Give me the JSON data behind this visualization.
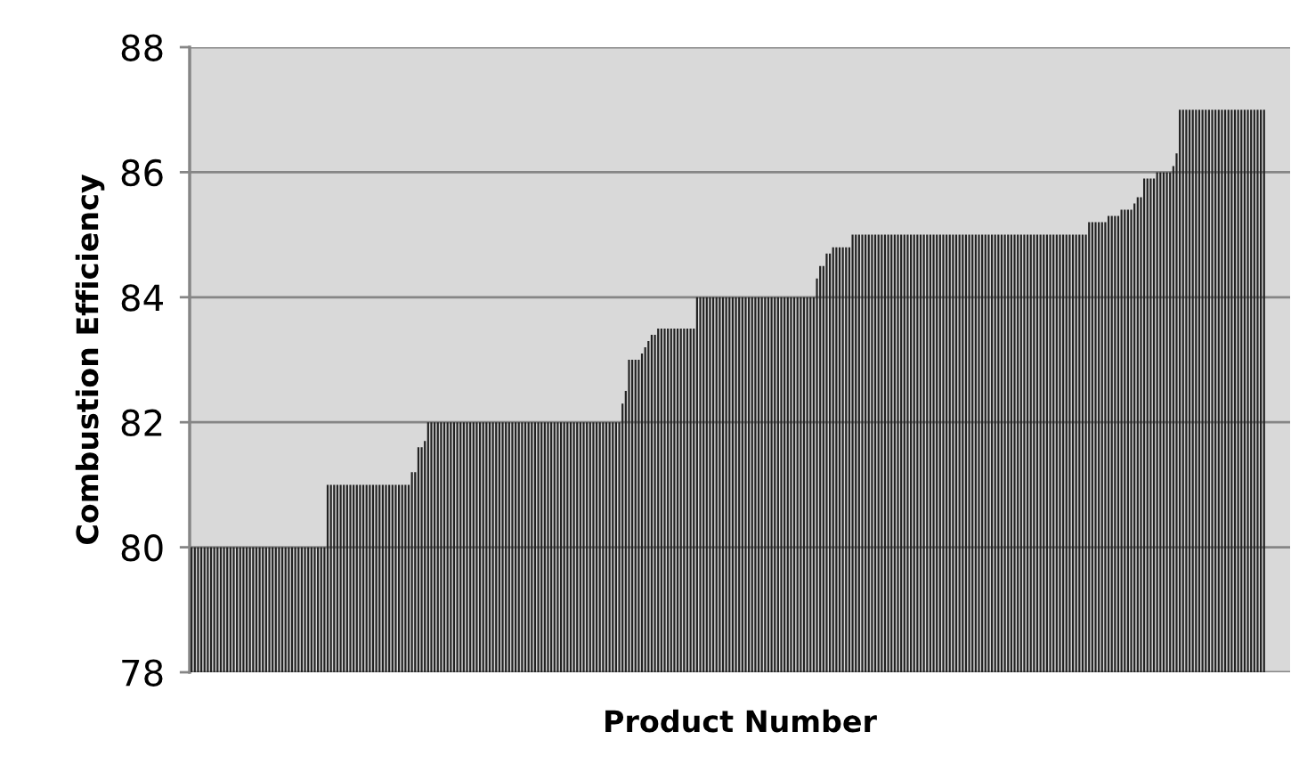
{
  "chart_data": {
    "type": "bar",
    "xlabel": "Product Number",
    "ylabel": "Combustion Efficiency",
    "categories": [
      null,
      null,
      null,
      null,
      null,
      null,
      null,
      null,
      null,
      null,
      null,
      null,
      null,
      null,
      null,
      null,
      null,
      null,
      null,
      null,
      null,
      null,
      null,
      null,
      null,
      null,
      null,
      null,
      null,
      null,
      null,
      null,
      null,
      null,
      null,
      null,
      null,
      null,
      null,
      null,
      null,
      null,
      null,
      null,
      null,
      null,
      null,
      null,
      null,
      null,
      null,
      null,
      null,
      null,
      null,
      null,
      null,
      null,
      null,
      null,
      null,
      null,
      null,
      null,
      null,
      null,
      null,
      null,
      null,
      null,
      null,
      null,
      null,
      null,
      null,
      null,
      null,
      null,
      null,
      null,
      null,
      null,
      null,
      null,
      null,
      null,
      null,
      null,
      null,
      null,
      null,
      null,
      null,
      null,
      null,
      null,
      null,
      null,
      null,
      null,
      null,
      null,
      null,
      null,
      null,
      null,
      null,
      null,
      null,
      null,
      null,
      null,
      null,
      null,
      null,
      null,
      null,
      null,
      null,
      null,
      null,
      null,
      null,
      null,
      null,
      null,
      null,
      null,
      null,
      null,
      null,
      null,
      null,
      null,
      null,
      null,
      null,
      null,
      null,
      null,
      null,
      null,
      null,
      null,
      null,
      null,
      null,
      null,
      null,
      null,
      null,
      null,
      null,
      null,
      null,
      null,
      null,
      null,
      null,
      null,
      null,
      null,
      null,
      null,
      null,
      null,
      null,
      null,
      null,
      null,
      null,
      null,
      null,
      null,
      null,
      null,
      null,
      null,
      null,
      null,
      null,
      null,
      null,
      null,
      null,
      null,
      null,
      null,
      null,
      null,
      null,
      null,
      null,
      null,
      null,
      null,
      null,
      null,
      null,
      null,
      null,
      null,
      null,
      null,
      null,
      null,
      null,
      null,
      null,
      null,
      null,
      null,
      null,
      null,
      null,
      null,
      null,
      null,
      null,
      null,
      null,
      null,
      null,
      null,
      null,
      null,
      null,
      null,
      null,
      null,
      null,
      null,
      null,
      null,
      null,
      null,
      null,
      null,
      null,
      null,
      null,
      null,
      null,
      null,
      null,
      null,
      null,
      null,
      null,
      null,
      null,
      null,
      null,
      null,
      null,
      null,
      null,
      null,
      null,
      null,
      null,
      null,
      null,
      null,
      null,
      null,
      null,
      null,
      null,
      null,
      null,
      null,
      null,
      null,
      null,
      null,
      null,
      null,
      null,
      null,
      null,
      null,
      null,
      null,
      null,
      null,
      null,
      null,
      null,
      null,
      null,
      null,
      null,
      null,
      null,
      null,
      null,
      null,
      null,
      null,
      null,
      null,
      null,
      null,
      null,
      null,
      null,
      null,
      null,
      null,
      null,
      null,
      null,
      null,
      null,
      null,
      null,
      null,
      null,
      null,
      null,
      null,
      null,
      null,
      null,
      null,
      null,
      null,
      null,
      null,
      null,
      null
    ],
    "values": [
      80,
      80,
      80,
      80,
      80,
      80,
      80,
      80,
      80,
      80,
      80,
      80,
      80,
      80,
      80,
      80,
      80,
      80,
      80,
      80,
      80,
      80,
      80,
      80,
      80,
      80,
      80,
      80,
      80,
      80,
      80,
      80,
      80,
      80,
      80,
      80,
      80,
      80,
      80,
      80,
      80,
      80,
      81,
      81,
      81,
      81,
      81,
      81,
      81,
      81,
      81,
      81,
      81,
      81,
      81,
      81,
      81,
      81,
      81,
      81,
      81,
      81,
      81,
      81,
      81,
      81,
      81,
      81,
      81.2,
      81.2,
      81.6,
      81.6,
      81.7,
      82,
      82,
      82,
      82,
      82,
      82,
      82,
      82,
      82,
      82,
      82,
      82,
      82,
      82,
      82,
      82,
      82,
      82,
      82,
      82,
      82,
      82,
      82,
      82,
      82,
      82,
      82,
      82,
      82,
      82,
      82,
      82,
      82,
      82,
      82,
      82,
      82,
      82,
      82,
      82,
      82,
      82,
      82,
      82,
      82,
      82,
      82,
      82,
      82,
      82,
      82,
      82,
      82,
      82,
      82,
      82,
      82,
      82,
      82,
      82,
      82.3,
      82.5,
      83,
      83,
      83,
      83,
      83.1,
      83.2,
      83.3,
      83.4,
      83.4,
      83.5,
      83.5,
      83.5,
      83.5,
      83.5,
      83.5,
      83.5,
      83.5,
      83.5,
      83.5,
      83.5,
      83.5,
      84,
      84,
      84,
      84,
      84,
      84,
      84,
      84,
      84,
      84,
      84,
      84,
      84,
      84,
      84,
      84,
      84,
      84,
      84,
      84,
      84,
      84,
      84,
      84,
      84,
      84,
      84,
      84,
      84,
      84,
      84,
      84,
      84,
      84,
      84,
      84,
      84,
      84.3,
      84.5,
      84.5,
      84.7,
      84.7,
      84.8,
      84.8,
      84.8,
      84.8,
      84.8,
      84.8,
      85,
      85,
      85,
      85,
      85,
      85,
      85,
      85,
      85,
      85,
      85,
      85,
      85,
      85,
      85,
      85,
      85,
      85,
      85,
      85,
      85,
      85,
      85,
      85,
      85,
      85,
      85,
      85,
      85,
      85,
      85,
      85,
      85,
      85,
      85,
      85,
      85,
      85,
      85,
      85,
      85,
      85,
      85,
      85,
      85,
      85,
      85,
      85,
      85,
      85,
      85,
      85,
      85,
      85,
      85,
      85,
      85,
      85,
      85,
      85,
      85,
      85,
      85,
      85,
      85,
      85,
      85,
      85,
      85,
      85,
      85,
      85,
      85,
      85.2,
      85.2,
      85.2,
      85.2,
      85.2,
      85.2,
      85.3,
      85.3,
      85.3,
      85.3,
      85.4,
      85.4,
      85.4,
      85.4,
      85.5,
      85.6,
      85.6,
      85.9,
      85.9,
      85.9,
      85.9,
      86,
      86,
      86,
      86,
      86,
      86.1,
      86.3,
      87,
      87,
      87,
      87,
      87,
      87,
      87,
      87,
      87,
      87,
      87,
      87,
      87,
      87,
      87,
      87,
      87,
      87,
      87,
      87,
      87,
      87,
      87,
      87,
      87,
      87,
      87
    ],
    "color": "#222222",
    "ylim": [
      78,
      88
    ],
    "yticks": [
      78,
      80,
      82,
      84,
      86,
      88
    ],
    "grid": "y",
    "tick_labels": "y"
  }
}
